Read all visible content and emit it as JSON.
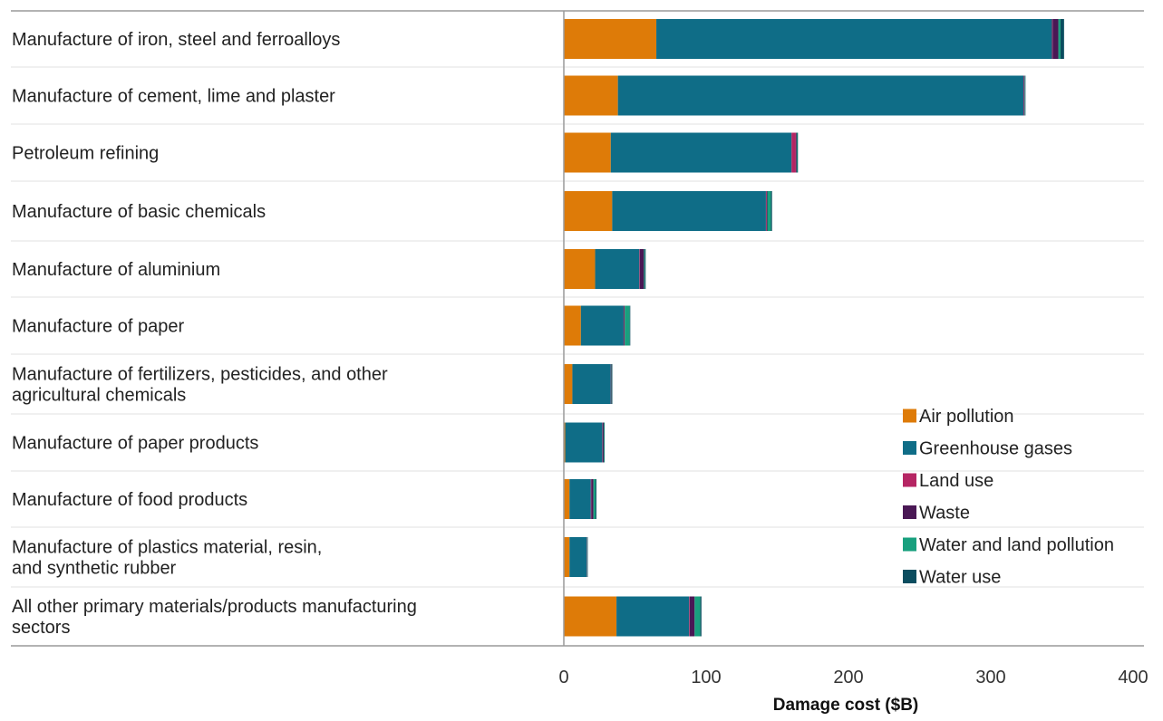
{
  "chart_data": {
    "type": "bar",
    "orientation": "horizontal",
    "stacked": true,
    "title": "",
    "xlabel": "Damage cost ($B)",
    "ylabel": "",
    "xlim": [
      0,
      400
    ],
    "x_ticks": [
      0,
      100,
      200,
      300,
      400
    ],
    "grid": false,
    "legend_position": "right",
    "categories": [
      [
        "Manufacture of iron, steel and ferroalloys"
      ],
      [
        "Manufacture of cement, lime and plaster"
      ],
      [
        "Petroleum refining"
      ],
      [
        "Manufacture of basic chemicals"
      ],
      [
        "Manufacture of aluminium"
      ],
      [
        "Manufacture of paper"
      ],
      [
        "Manufacture of fertilizers, pesticides, and other",
        "agricultural chemicals"
      ],
      [
        "Manufacture of paper products"
      ],
      [
        "Manufacture of food products"
      ],
      [
        "Manufacture of plastics material, resin,",
        "and synthetic rubber"
      ],
      [
        "All other primary materials/products manufacturing",
        "sectors"
      ]
    ],
    "series": [
      {
        "name": "Air pollution",
        "color": "#DE7B08",
        "values": [
          65,
          38,
          33,
          34,
          22,
          12,
          6,
          1,
          4,
          4,
          37
        ]
      },
      {
        "name": "Greenhouse gases",
        "color": "#0F6D87",
        "values": [
          278,
          285,
          127,
          108,
          31,
          30,
          27,
          26,
          15,
          12,
          51
        ]
      },
      {
        "name": "Land use",
        "color": "#B52563",
        "values": [
          0.5,
          0.3,
          3,
          0.5,
          0.3,
          0.3,
          0.1,
          0.2,
          0.3,
          0.1,
          0.4
        ]
      },
      {
        "name": "Waste",
        "color": "#4A1855",
        "values": [
          4,
          0.4,
          0.6,
          0.5,
          3,
          0.5,
          0.4,
          0.8,
          1.5,
          0.3,
          3.5
        ]
      },
      {
        "name": "Water and land pollution",
        "color": "#18A07E",
        "values": [
          1.5,
          0.3,
          0.4,
          2.5,
          0.6,
          3.5,
          0.3,
          0.4,
          1.5,
          0.3,
          4
        ]
      },
      {
        "name": "Water use",
        "color": "#0B4D5F",
        "values": [
          2.5,
          0.4,
          0.5,
          0.8,
          0.6,
          0.4,
          0.3,
          0.3,
          0.6,
          0.2,
          0.8
        ]
      }
    ]
  }
}
